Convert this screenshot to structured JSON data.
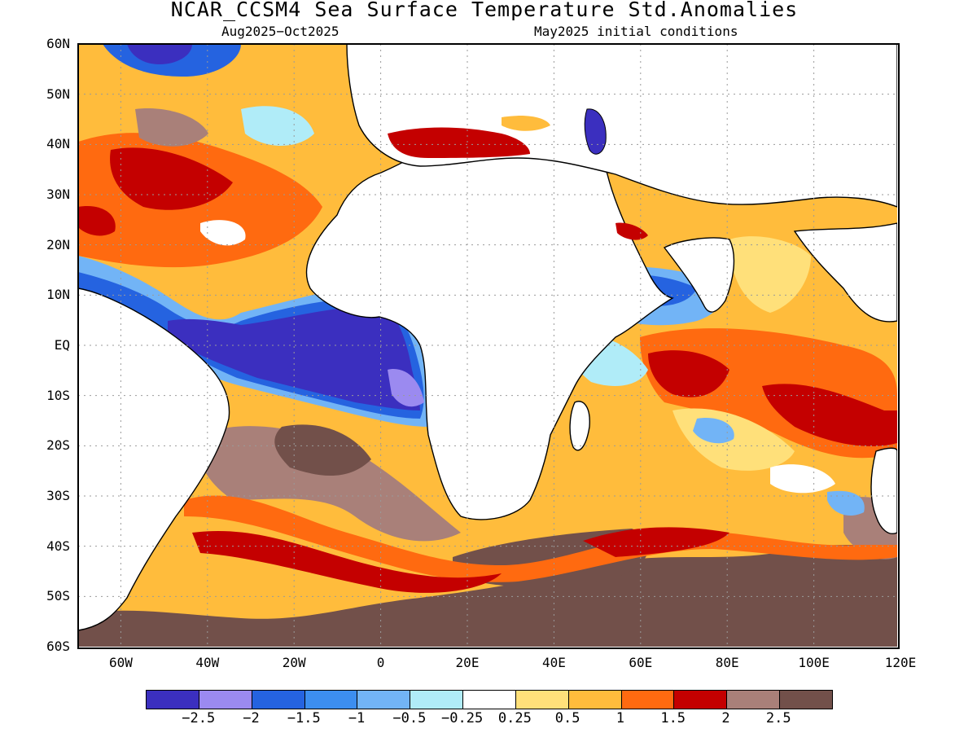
{
  "title": "NCAR_CCSM4 Sea Surface Temperature Std.Anomalies",
  "subtitle_period": "Aug2025−Oct2025",
  "subtitle_init": "May2025 initial conditions",
  "lat_labels": [
    "60N",
    "50N",
    "40N",
    "30N",
    "20N",
    "10N",
    "EQ",
    "10S",
    "20S",
    "30S",
    "40S",
    "50S",
    "60S"
  ],
  "lon_labels": [
    "60W",
    "40W",
    "20W",
    "0",
    "20E",
    "40E",
    "60E",
    "80E",
    "100E",
    "120E"
  ],
  "colorbar": {
    "colors": [
      "#3b2fbf",
      "#9b8af0",
      "#2563e0",
      "#3c8ef0",
      "#72b4f6",
      "#b0ecf8",
      "#ffffff",
      "#ffe07a",
      "#ffbc3c",
      "#ff6a10",
      "#c40000",
      "#a98079",
      "#72504a"
    ],
    "labels": [
      "−2.5",
      "−2",
      "−1.5",
      "−1",
      "−0.5",
      "−0.25",
      "0.25",
      "0.5",
      "1",
      "1.5",
      "2",
      "2.5"
    ],
    "levels": [
      -2.5,
      -2,
      -1.5,
      -1,
      -0.5,
      -0.25,
      0.25,
      0.5,
      1,
      1.5,
      2,
      2.5
    ]
  }
}
